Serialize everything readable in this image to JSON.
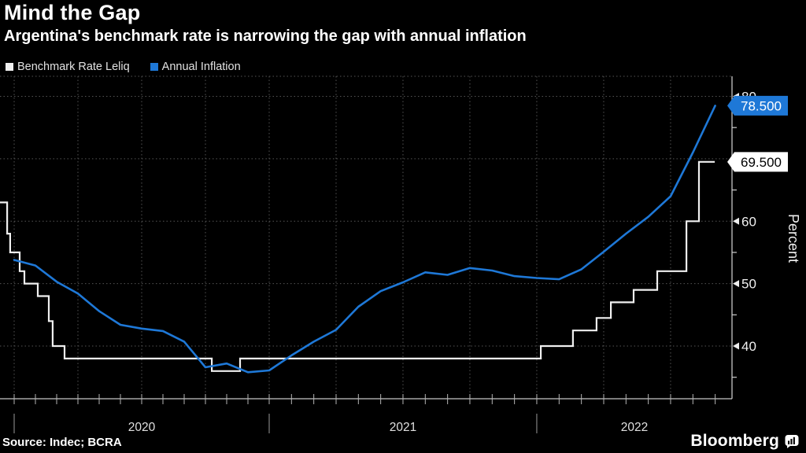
{
  "footer": {
    "source": "Source: Indec; BCRA",
    "brand": "Bloomberg"
  },
  "chart_data": {
    "type": "line",
    "title": "Mind the Gap",
    "subtitle": "Argentina's benchmark rate is narrowing the gap with annual inflation",
    "ylabel": "Percent",
    "ylim": [
      31.5,
      82.5
    ],
    "yticks_major": [
      40,
      50,
      60,
      70,
      80
    ],
    "yticks_minor": [
      35,
      45,
      55,
      65,
      75
    ],
    "grid": "dotted",
    "legend_position": "top-left",
    "background": "#000000",
    "time_note": "m = months after Dec 31 2019; inflation points plotted at month-end",
    "x_months": [
      "2019-12",
      "2020-01",
      "2020-02",
      "2020-03",
      "2020-04",
      "2020-05",
      "2020-06",
      "2020-07",
      "2020-08",
      "2020-09",
      "2020-10",
      "2020-11",
      "2020-12",
      "2021-01",
      "2021-02",
      "2021-03",
      "2021-04",
      "2021-05",
      "2021-06",
      "2021-07",
      "2021-08",
      "2021-09",
      "2021-10",
      "2021-11",
      "2021-12",
      "2022-01",
      "2022-02",
      "2022-03",
      "2022-04",
      "2022-05",
      "2022-06",
      "2022-07",
      "2022-08"
    ],
    "x_years": [
      {
        "label": "2020",
        "from_m": 0,
        "to_m": 12
      },
      {
        "label": "2021",
        "from_m": 12,
        "to_m": 24
      },
      {
        "label": "2022",
        "from_m": 24,
        "to_m": 33
      }
    ],
    "series": [
      {
        "name": "Benchmark Rate Leliq",
        "type": "step",
        "color": "#f0f0f0",
        "badge_bg": "#ffffff",
        "badge_fg": "#000000",
        "end_label": "69.500",
        "end_m": 31.98,
        "steps": [
          [
            -0.67,
            63
          ],
          [
            -0.33,
            58
          ],
          [
            -0.19,
            55
          ],
          [
            0.26,
            52
          ],
          [
            0.48,
            50
          ],
          [
            1.11,
            48
          ],
          [
            1.63,
            44
          ],
          [
            1.81,
            40
          ],
          [
            2.37,
            38
          ],
          [
            9.3,
            36
          ],
          [
            10.63,
            38
          ],
          [
            24.18,
            40
          ],
          [
            25.62,
            42.5
          ],
          [
            26.68,
            44.5
          ],
          [
            27.32,
            47
          ],
          [
            28.34,
            49
          ],
          [
            29.4,
            52
          ],
          [
            30.71,
            60
          ],
          [
            31.27,
            69.5
          ]
        ]
      },
      {
        "name": "Annual Inflation",
        "type": "line",
        "color": "#1e78d7",
        "badge_bg": "#1e78d7",
        "badge_fg": "#ffffff",
        "end_label": "78.500",
        "values": [
          53.8,
          52.9,
          50.3,
          48.4,
          45.6,
          43.4,
          42.8,
          42.4,
          40.7,
          36.6,
          37.2,
          35.8,
          36.1,
          38.5,
          40.7,
          42.6,
          46.3,
          48.8,
          50.2,
          51.8,
          51.4,
          52.5,
          52.1,
          51.2,
          50.9,
          50.7,
          52.3,
          55.1,
          58.0,
          60.7,
          64.0,
          71.0,
          78.5
        ]
      }
    ]
  }
}
